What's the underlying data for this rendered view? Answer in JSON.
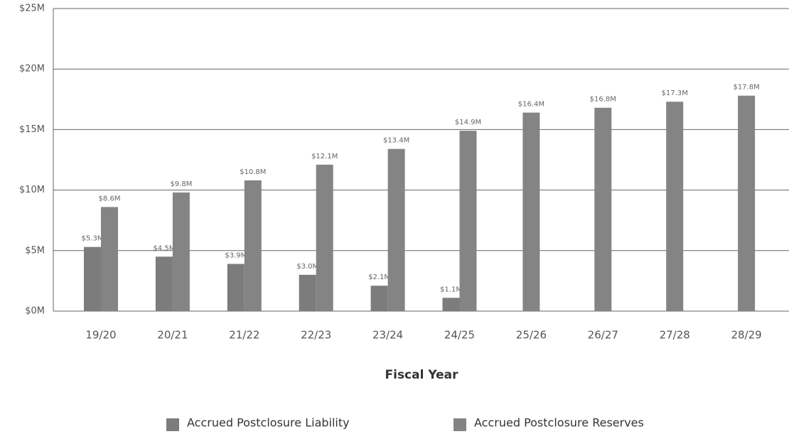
{
  "chart_data": {
    "type": "bar",
    "x_label": "Fiscal Year",
    "categories": [
      "19/20",
      "20/21",
      "21/22",
      "22/23",
      "23/24",
      "24/25",
      "25/26",
      "26/27",
      "27/28",
      "28/29"
    ],
    "series": [
      {
        "name": "Accrued Postclosure Liability",
        "color": "#7c7c7c",
        "values": [
          5.3,
          4.5,
          3.9,
          3.0,
          2.1,
          1.1,
          null,
          null,
          null,
          null
        ],
        "value_labels": [
          "$5.3M",
          "$4.5M",
          "$3.9M",
          "$3.0M",
          "$2.1M",
          "$1.1M",
          null,
          null,
          null,
          null
        ]
      },
      {
        "name": "Accrued Postclosure Reserves",
        "color": "#848484",
        "values": [
          8.6,
          9.8,
          10.8,
          12.1,
          13.4,
          14.9,
          16.4,
          16.8,
          17.3,
          17.8
        ],
        "value_labels": [
          "$8.6M",
          "$9.8M",
          "$10.8M",
          "$12.1M",
          "$13.4M",
          "$14.9M",
          "$16.4M",
          "$16.8M",
          "$17.3M",
          "$17.8M"
        ]
      }
    ],
    "ylim": [
      0,
      25
    ],
    "yticks": [
      {
        "value": 0,
        "label": "$0M"
      },
      {
        "value": 5,
        "label": "$5M"
      },
      {
        "value": 10,
        "label": "$10M"
      },
      {
        "value": 15,
        "label": "$15M"
      },
      {
        "value": 20,
        "label": "$20M"
      },
      {
        "value": 25,
        "label": "$25M"
      }
    ],
    "grid": true
  }
}
